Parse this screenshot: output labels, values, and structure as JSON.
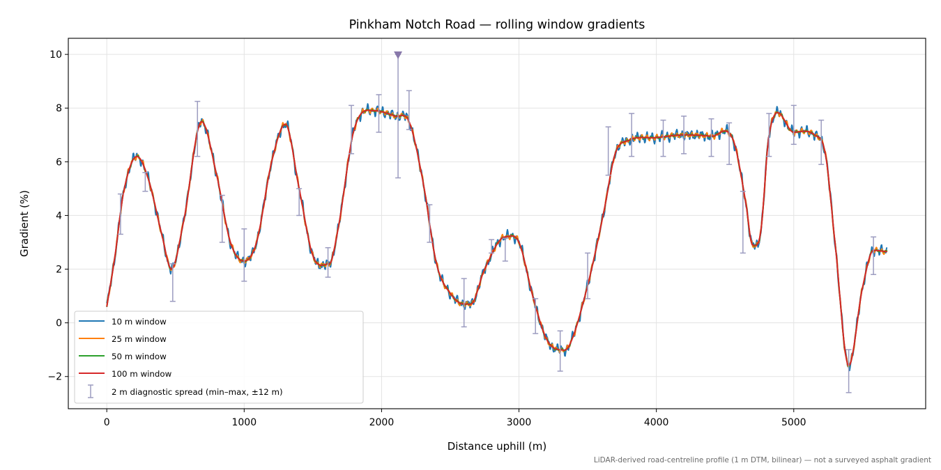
{
  "chart_data": {
    "type": "line",
    "title": "Pinkham Notch Road — rolling window gradients",
    "xlabel": "Distance uphill (m)",
    "ylabel": "Gradient (%)",
    "footnote": "LiDAR-derived road-centreline profile (1 m DTM, bilinear) — not a surveyed asphalt gradient",
    "xlim": [
      -280,
      5960
    ],
    "ylim": [
      -3.2,
      10.6
    ],
    "xticks": [
      0,
      1000,
      2000,
      3000,
      4000,
      5000
    ],
    "xtick_labels": [
      "0",
      "1000",
      "2000",
      "3000",
      "4000",
      "5000"
    ],
    "yticks": [
      -2,
      0,
      2,
      4,
      6,
      8,
      10
    ],
    "ytick_labels": [
      "−2",
      "0",
      "2",
      "4",
      "6",
      "8",
      "10"
    ],
    "grid": true,
    "legend_position": "lower-left",
    "series": [
      {
        "name": "10 m window",
        "color": "#1f77b4",
        "noise": 0.2
      },
      {
        "name": "25 m window",
        "color": "#ff7f0e",
        "noise": 0.1
      },
      {
        "name": "50 m window",
        "color": "#2ca02c",
        "noise": 0.04
      },
      {
        "name": "100 m window",
        "color": "#d62728",
        "noise": 0
      }
    ],
    "profile_x": [
      0,
      60,
      120,
      220,
      300,
      400,
      470,
      560,
      690,
      800,
      900,
      1000,
      1090,
      1200,
      1300,
      1400,
      1500,
      1620,
      1680,
      1800,
      1950,
      2100,
      2200,
      2300,
      2400,
      2500,
      2600,
      2650,
      2750,
      2900,
      3000,
      3100,
      3200,
      3300,
      3360,
      3500,
      3620,
      3700,
      3800,
      4000,
      4200,
      4400,
      4560,
      4650,
      4700,
      4760,
      4820,
      5000,
      5150,
      5230,
      5300,
      5400,
      5500,
      5580,
      5680
    ],
    "profile_y": [
      0.6,
      2.5,
      4.8,
      6.2,
      5.4,
      3.3,
      2.0,
      3.8,
      7.5,
      5.5,
      3.0,
      2.3,
      3.0,
      6.0,
      7.4,
      5.0,
      2.5,
      2.2,
      3.4,
      7.2,
      7.9,
      7.7,
      7.5,
      5.3,
      2.2,
      1.1,
      0.7,
      0.7,
      2.0,
      3.2,
      3.0,
      1.0,
      -0.6,
      -1.0,
      -0.9,
      1.4,
      4.2,
      6.3,
      6.8,
      6.9,
      7.0,
      6.95,
      6.8,
      4.5,
      2.9,
      3.4,
      7.0,
      7.1,
      7.0,
      6.3,
      3.0,
      -1.6,
      1.3,
      2.7,
      2.65
    ],
    "diagnostic_spread": {
      "name": "2 m diagnostic spread (min–max, ±12 m)",
      "color": "#9c9cc0",
      "x": [
        100,
        280,
        480,
        660,
        840,
        1000,
        1400,
        1610,
        1780,
        1980,
        2120,
        2200,
        2350,
        2600,
        2800,
        2900,
        3120,
        3300,
        3500,
        3650,
        3820,
        4050,
        4200,
        4400,
        4530,
        4630,
        4820,
        5000,
        5200,
        5400,
        5580
      ],
      "low": [
        3.3,
        4.9,
        0.8,
        6.2,
        3.0,
        1.55,
        4.0,
        1.7,
        6.3,
        7.1,
        5.4,
        7.2,
        3.0,
        -0.15,
        2.6,
        2.3,
        -0.4,
        -1.8,
        0.9,
        5.5,
        6.2,
        6.2,
        6.3,
        6.2,
        5.9,
        2.6,
        6.2,
        6.65,
        5.9,
        -2.6,
        1.8
      ],
      "high": [
        4.8,
        5.6,
        2.2,
        8.25,
        4.75,
        3.5,
        5.0,
        2.8,
        8.1,
        8.5,
        10.0,
        8.65,
        4.4,
        1.65,
        3.1,
        3.15,
        0.9,
        -0.3,
        2.6,
        7.3,
        7.8,
        7.55,
        7.7,
        7.6,
        7.45,
        4.9,
        7.8,
        8.1,
        7.55,
        -1.0,
        3.2
      ]
    },
    "marker": {
      "x": 2120,
      "y": 9.98,
      "shape": "down-triangle",
      "color": "#8878aa"
    }
  }
}
